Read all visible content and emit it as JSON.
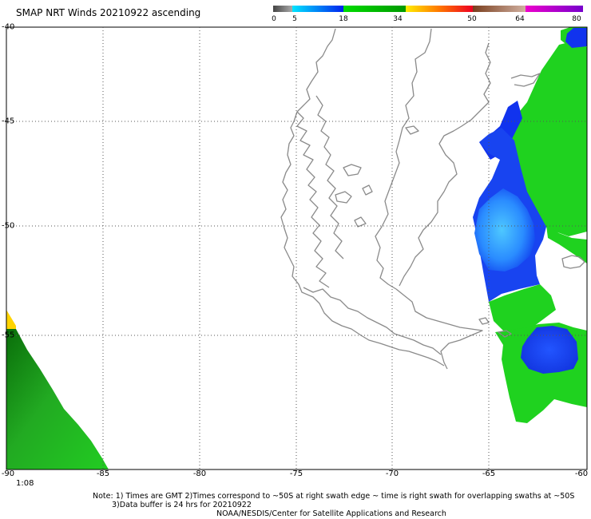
{
  "title": "SMAP NRT Winds 20210922 ascending",
  "colorbar": {
    "ticks": [
      "0",
      "5",
      "18",
      "34",
      "50",
      "64",
      "80"
    ],
    "colors": [
      "#555555",
      "#1fb1ff",
      "#0022ee",
      "#00cc00",
      "#ffcc00",
      "#ff2200",
      "#8b5a3c",
      "#cc00cc",
      "#8800cc"
    ]
  },
  "axes": {
    "lat_labels": [
      "-40",
      "-45",
      "-50",
      "-55"
    ],
    "lon_labels": [
      "-90",
      "-85",
      "-80",
      "-75",
      "-70",
      "-65",
      "-60"
    ]
  },
  "time_label": "1:08",
  "notes": {
    "line1": "Note: 1) Times are GMT 2)Times correspond to ~50S at right swath edge ~ time is right swath for overlapping swaths at ~50S",
    "line2": "3)Data buffer is 24 hrs for 20210922",
    "line3": "NOAA/NESDIS/Center for Satellite Applications and Research"
  }
}
